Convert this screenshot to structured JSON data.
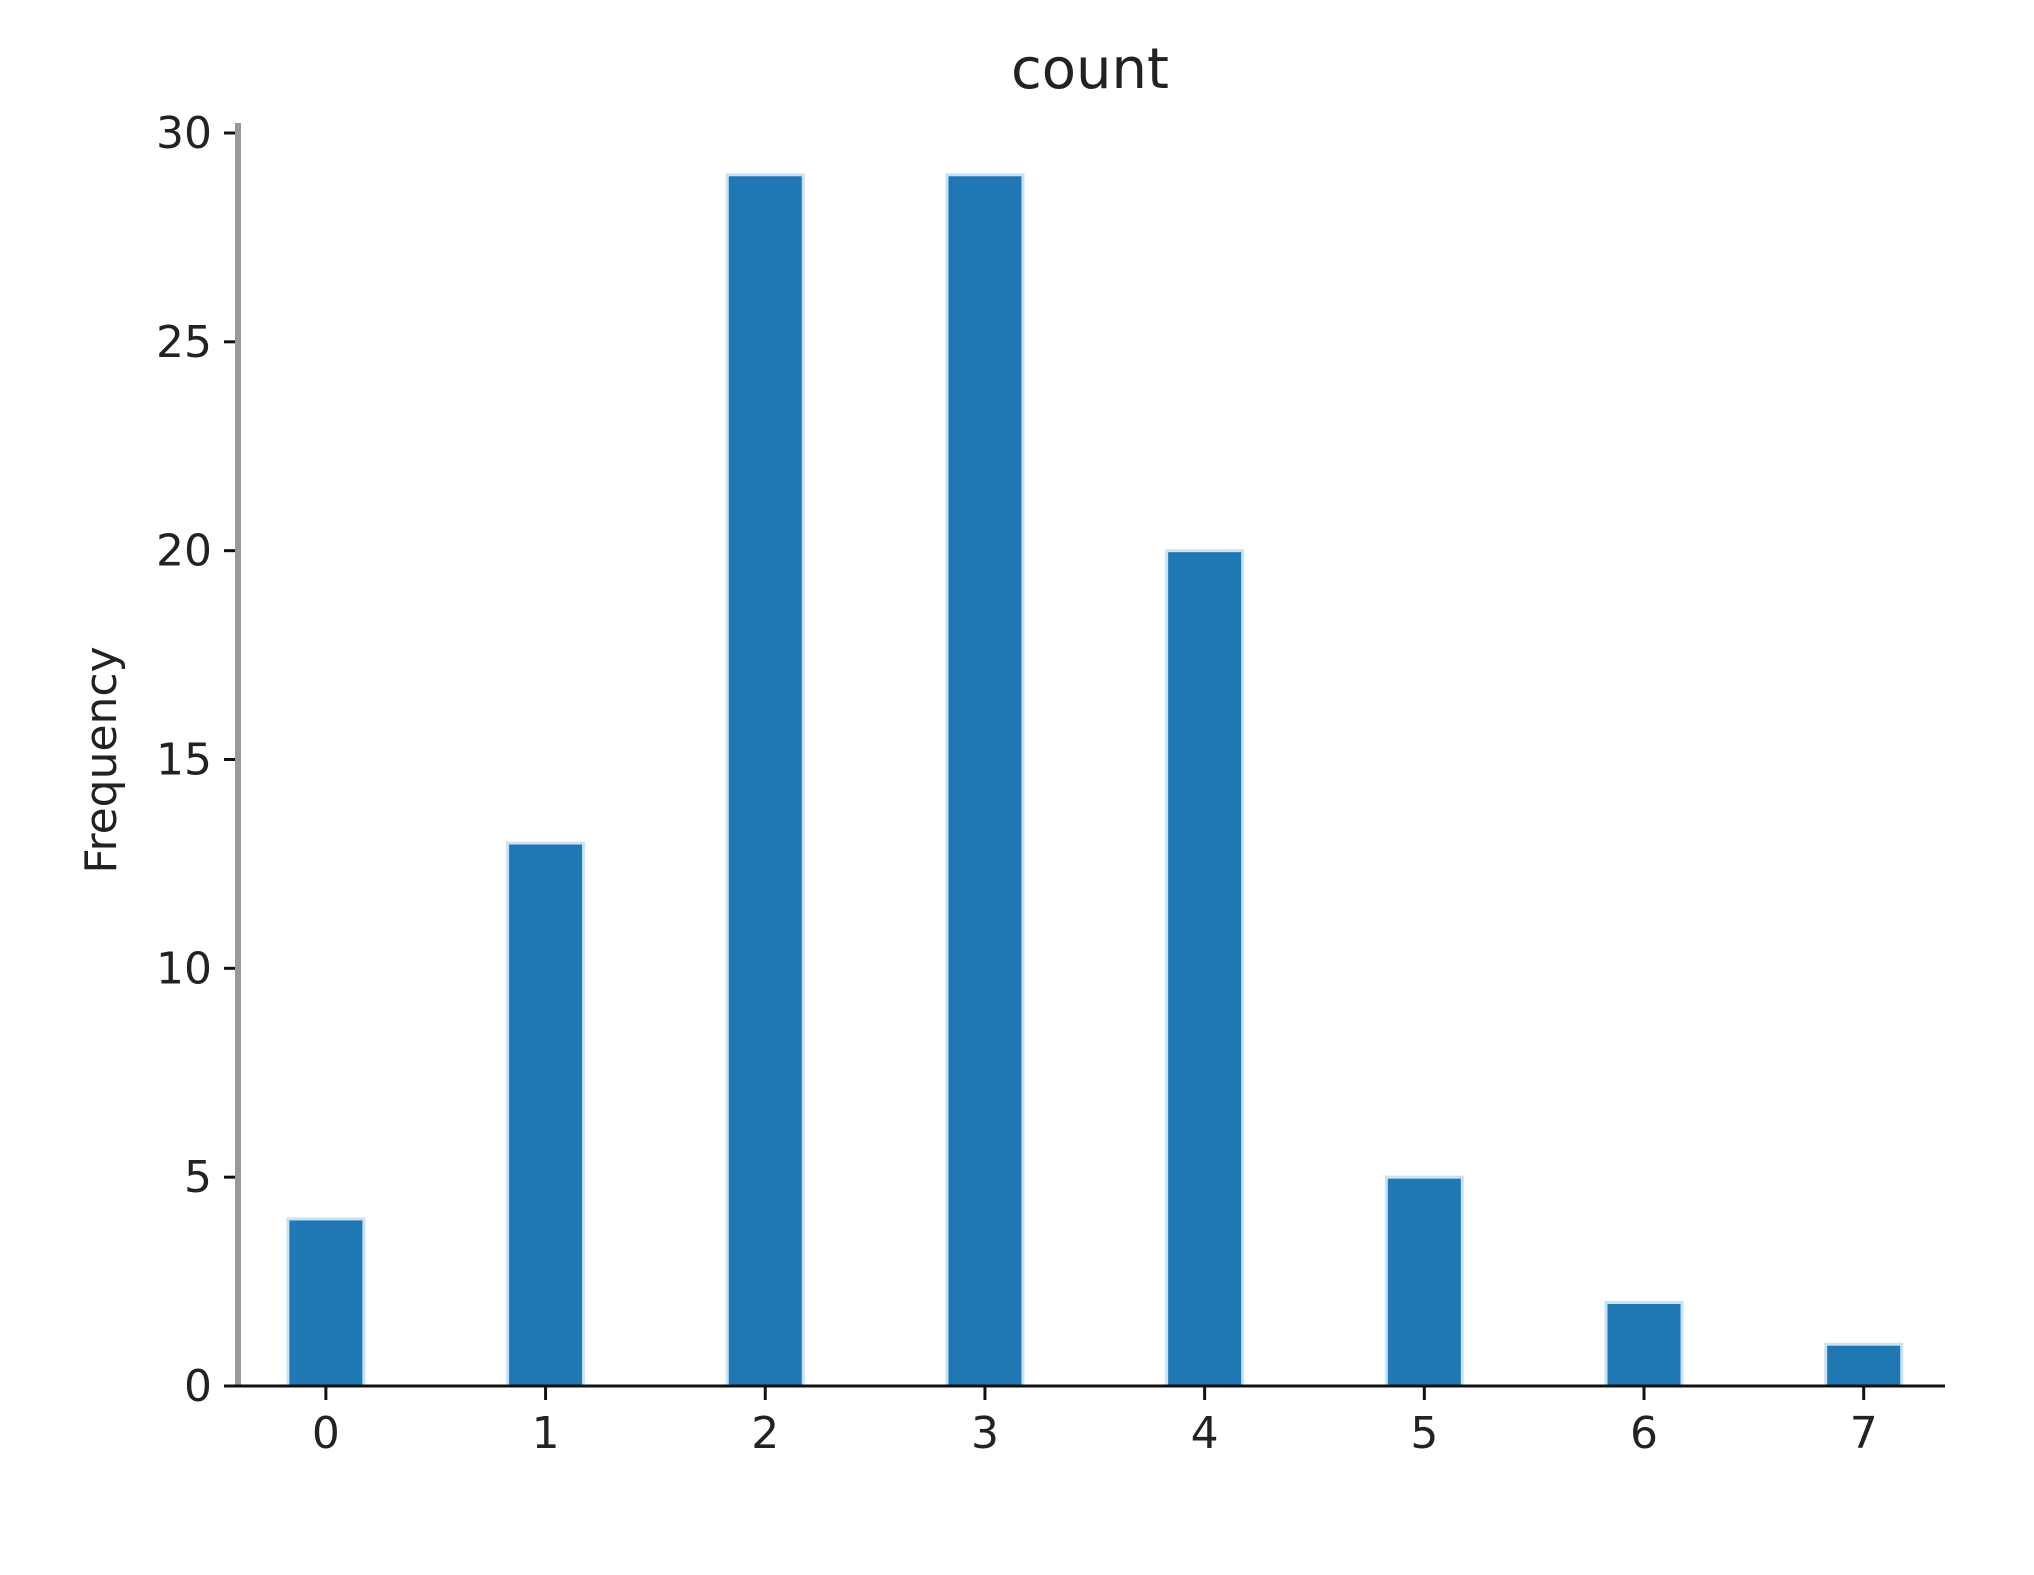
{
  "chart_data": {
    "type": "bar",
    "title": "count",
    "xlabel": "",
    "ylabel": "Frequency",
    "x": [
      0,
      1,
      2,
      3,
      4,
      5,
      6,
      7
    ],
    "values": [
      4,
      13,
      29,
      29,
      20,
      5,
      2,
      1
    ],
    "xticks": [
      "0",
      "1",
      "2",
      "3",
      "4",
      "5",
      "6",
      "7"
    ],
    "yticks": [
      "0",
      "5",
      "10",
      "15",
      "20",
      "25",
      "30"
    ],
    "ylim": [
      0,
      30
    ],
    "xlim": [
      -0.4,
      7.37
    ],
    "grid": false,
    "bar_color": "#1f77b4",
    "bar_edge_color": "#c9e3f5"
  }
}
